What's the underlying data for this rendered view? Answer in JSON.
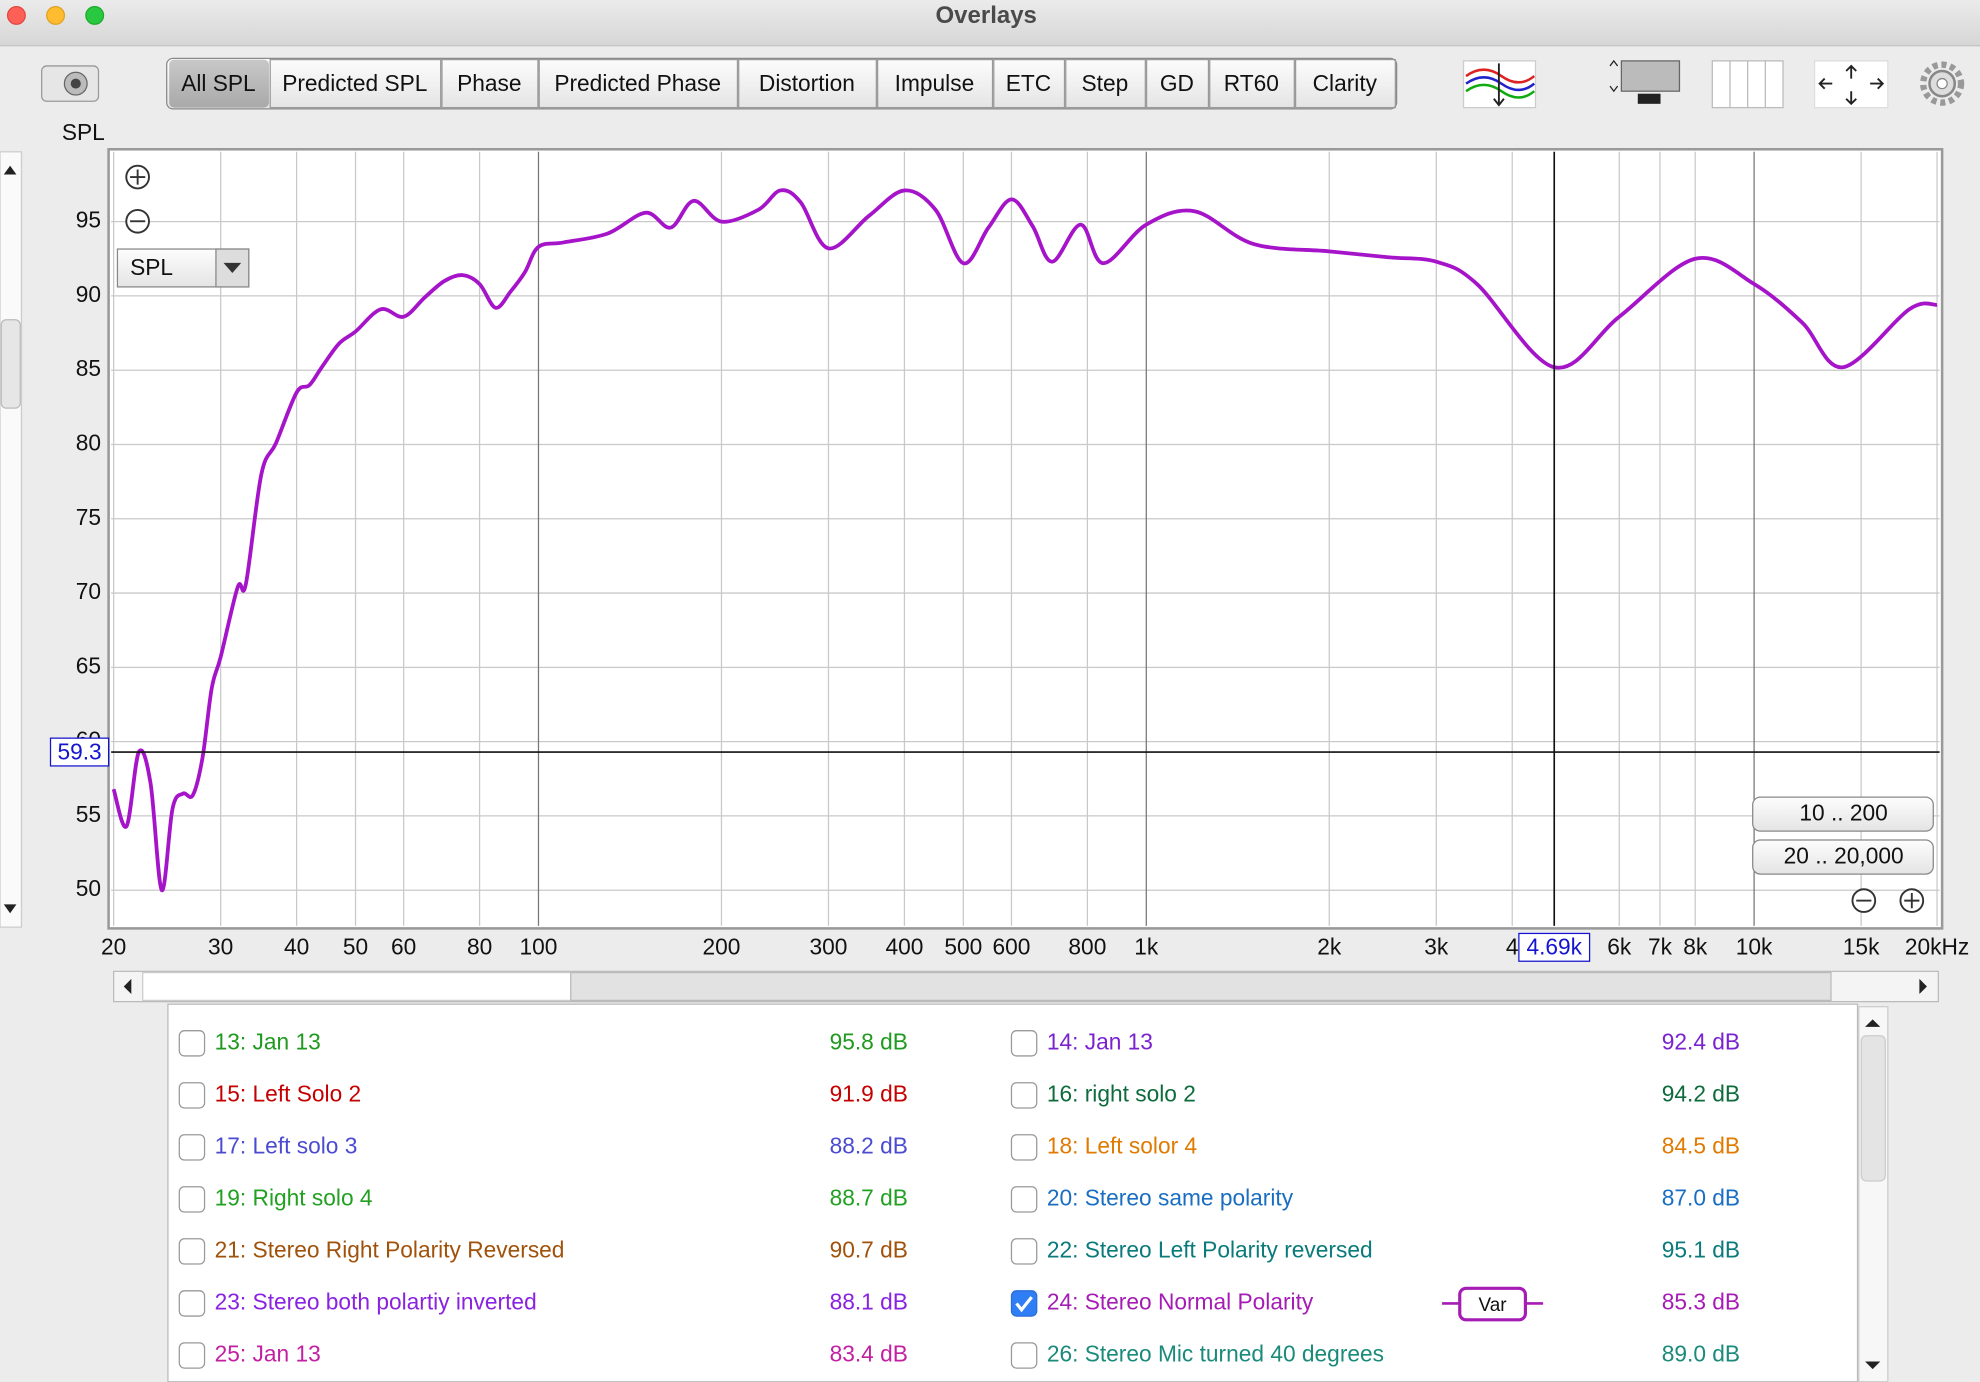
{
  "window": {
    "title": "Overlays"
  },
  "tabs": [
    "All SPL",
    "Predicted SPL",
    "Phase",
    "Predicted Phase",
    "Distortion",
    "Impulse",
    "ETC",
    "Step",
    "GD",
    "RT60",
    "Clarity"
  ],
  "selected_tab": 0,
  "axis_label": "SPL",
  "dropdown": "SPL",
  "range_buttons": [
    "10 .. 200",
    "20 .. 20,000"
  ],
  "chart_data": {
    "type": "line",
    "x": [
      20,
      21,
      22,
      23,
      24,
      25,
      26,
      27,
      28,
      29,
      30,
      32,
      33,
      35,
      37,
      40,
      42,
      44,
      47,
      50,
      55,
      60,
      65,
      70,
      75,
      80,
      85,
      90,
      95,
      100,
      110,
      130,
      150,
      165,
      180,
      200,
      230,
      250,
      270,
      300,
      350,
      400,
      450,
      500,
      550,
      600,
      650,
      700,
      780,
      850,
      1000,
      1200,
      1500,
      2000,
      2500,
      3000,
      3500,
      4690,
      6000,
      8000,
      10000,
      12000,
      14000,
      18000,
      20000
    ],
    "values": [
      56.8,
      54.3,
      59.3,
      57.2,
      50,
      55.5,
      56.5,
      56.4,
      58.9,
      63.6,
      65.7,
      70.4,
      70.6,
      78,
      80.1,
      83.5,
      84,
      85.2,
      86.8,
      87.6,
      89.1,
      88.6,
      89.9,
      91,
      91.4,
      90.8,
      89.2,
      90.3,
      91.6,
      93.3,
      93.6,
      94.2,
      95.6,
      94.6,
      96.4,
      95,
      95.8,
      97.1,
      96.3,
      93.2,
      95.4,
      97.1,
      95.8,
      92.2,
      94.6,
      96.5,
      94.7,
      92.3,
      94.8,
      92.2,
      94.8,
      95.7,
      93.5,
      93,
      92.6,
      92.3,
      90.8,
      85.2,
      88.6,
      92.5,
      90.8,
      88.2,
      85.2,
      89.1,
      89.4
    ],
    "color": "#a514c9",
    "log_x": true,
    "grid": true,
    "xlim": [
      20,
      20000
    ],
    "ylim": [
      47.6,
      99.7
    ],
    "xticks": [
      20,
      30,
      40,
      50,
      60,
      80,
      100,
      200,
      300,
      400,
      500,
      600,
      800,
      {
        "value": 1000,
        "label": "1k"
      },
      {
        "value": 2000,
        "label": "2k"
      },
      {
        "value": 3000,
        "label": "3k"
      },
      {
        "value": 4000,
        "label": "4"
      },
      {
        "value": 6000,
        "label": "6k"
      },
      {
        "value": 7000,
        "label": "7k"
      },
      {
        "value": 8000,
        "label": "8k"
      },
      {
        "value": 10000,
        "label": "10k"
      },
      {
        "value": 15000,
        "label": "15k"
      },
      {
        "value": 20000,
        "label": "20kHz"
      }
    ],
    "yticks": [
      50,
      55,
      60,
      65,
      70,
      75,
      80,
      85,
      90,
      95
    ],
    "cursor": {
      "x": {
        "value": 4690,
        "label": "4.69k"
      },
      "y": 59.3
    }
  },
  "var_button": "Var",
  "list": [
    {
      "label": "13: Jan 13",
      "value": "95.8 dB",
      "color": "#1f9a1f",
      "checked": false
    },
    {
      "label": "14: Jan 13",
      "value": "92.4 dB",
      "color": "#7b22d0",
      "checked": false
    },
    {
      "label": "15: Left Solo 2",
      "value": "91.9 dB",
      "color": "#c40000",
      "checked": false
    },
    {
      "label": "16: right solo 2",
      "value": "94.2 dB",
      "color": "#0d6b3c",
      "checked": false
    },
    {
      "label": "17: Left solo 3",
      "value": "88.2 dB",
      "color": "#4b4bd2",
      "checked": false
    },
    {
      "label": "18: Left solor 4",
      "value": "84.5 dB",
      "color": "#e07a00",
      "checked": false
    },
    {
      "label": "19: Right solo 4",
      "value": "88.7 dB",
      "color": "#22a022",
      "checked": false
    },
    {
      "label": "20: Stereo same polarity",
      "value": "87.0 dB",
      "color": "#1a6ec2",
      "checked": false
    },
    {
      "label": "21: Stereo Right Polarity Reversed",
      "value": "90.7 dB",
      "color": "#a0520a",
      "checked": false
    },
    {
      "label": "22: Stereo Left Polarity reversed",
      "value": "95.1 dB",
      "color": "#0b7a7a",
      "checked": false
    },
    {
      "label": "23: Stereo both polartiy inverted",
      "value": "88.1 dB",
      "color": "#8a22e0",
      "checked": false
    },
    {
      "label": "24: Stereo Normal Polarity",
      "value": "85.3 dB",
      "color": "#a51cb5",
      "checked": true
    },
    {
      "label": "25: Jan 13",
      "value": "83.4 dB",
      "color": "#c21fa2",
      "checked": false
    },
    {
      "label": "26: Stereo Mic turned 40 degrees",
      "value": "89.0 dB",
      "color": "#1a8a7a",
      "checked": false
    }
  ]
}
